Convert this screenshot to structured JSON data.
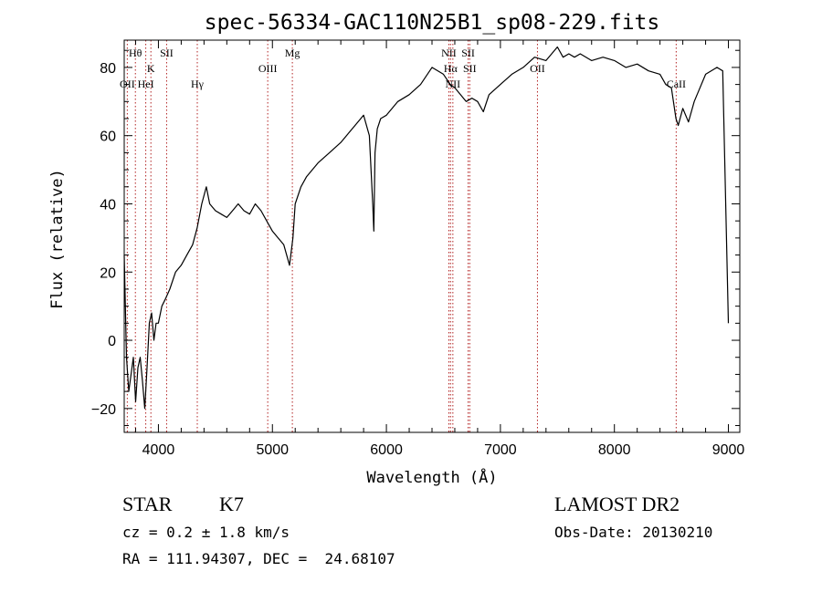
{
  "chart_data": {
    "type": "line",
    "title": "spec-56334-GAC110N25B1_sp08-229.fits",
    "xlabel": "Wavelength (Å)",
    "ylabel": "Flux (relative)",
    "xlim": [
      3700,
      9100
    ],
    "ylim": [
      -27,
      88
    ],
    "x_ticks": [
      4000,
      5000,
      6000,
      7000,
      8000,
      9000
    ],
    "y_ticks": [
      -20,
      0,
      20,
      40,
      60,
      80
    ],
    "grid": false,
    "line_color": "#000000",
    "marker_color": "#b22222",
    "series": [
      {
        "x": [
          3700,
          3720,
          3740,
          3760,
          3780,
          3800,
          3820,
          3840,
          3860,
          3880,
          3900,
          3920,
          3940,
          3960,
          3980,
          4000,
          4030,
          4060,
          4100,
          4150,
          4200,
          4250,
          4300,
          4340,
          4380,
          4420,
          4450,
          4500,
          4550,
          4600,
          4650,
          4700,
          4750,
          4800,
          4850,
          4900,
          4950,
          5000,
          5050,
          5100,
          5150,
          5180,
          5200,
          5250,
          5300,
          5400,
          5500,
          5600,
          5700,
          5800,
          5850,
          5880,
          5890,
          5900,
          5920,
          5950,
          6000,
          6100,
          6200,
          6300,
          6400,
          6500,
          6560,
          6600,
          6650,
          6700,
          6750,
          6800,
          6850,
          6900,
          7000,
          7100,
          7200,
          7300,
          7400,
          7500,
          7550,
          7600,
          7650,
          7700,
          7800,
          7900,
          8000,
          8100,
          8200,
          8300,
          8400,
          8450,
          8500,
          8540,
          8560,
          8600,
          8650,
          8700,
          8800,
          8900,
          8950,
          9000
        ],
        "y": [
          25,
          -5,
          -15,
          -10,
          -5,
          -18,
          -8,
          -5,
          -12,
          -20,
          -8,
          5,
          8,
          0,
          5,
          5,
          10,
          12,
          15,
          20,
          22,
          25,
          28,
          33,
          40,
          45,
          40,
          38,
          37,
          36,
          38,
          40,
          38,
          37,
          40,
          38,
          35,
          32,
          30,
          28,
          22,
          30,
          40,
          45,
          48,
          52,
          55,
          58,
          62,
          66,
          60,
          40,
          32,
          55,
          62,
          65,
          66,
          70,
          72,
          75,
          80,
          78,
          75,
          74,
          72,
          70,
          71,
          70,
          67,
          72,
          75,
          78,
          80,
          83,
          82,
          86,
          83,
          84,
          83,
          84,
          82,
          83,
          82,
          80,
          81,
          79,
          78,
          75,
          74,
          65,
          63,
          68,
          64,
          70,
          78,
          80,
          79,
          5
        ]
      }
    ],
    "line_markers": [
      {
        "label": "Hθ",
        "x": 3798,
        "row": 1
      },
      {
        "label": "OII",
        "x": 3727,
        "row": 3
      },
      {
        "label": "K",
        "x": 3934,
        "row": 2
      },
      {
        "label": "HeI",
        "x": 3889,
        "row": 3
      },
      {
        "label": "SII",
        "x": 4072,
        "row": 1
      },
      {
        "label": "Hγ",
        "x": 4341,
        "row": 3
      },
      {
        "label": "OIII",
        "x": 4959,
        "row": 2
      },
      {
        "label": "Mg",
        "x": 5175,
        "row": 1
      },
      {
        "label": "NII",
        "x": 6548,
        "row": 1
      },
      {
        "label": "Hα",
        "x": 6563,
        "row": 2
      },
      {
        "label": "NII",
        "x": 6583,
        "row": 3
      },
      {
        "label": "SII",
        "x": 6717,
        "row": 1
      },
      {
        "label": "SII",
        "x": 6731,
        "row": 2
      },
      {
        "label": "OII",
        "x": 7325,
        "row": 2
      },
      {
        "label": "CaII",
        "x": 8542,
        "row": 3
      }
    ]
  },
  "info": {
    "class": "STAR",
    "subclass": "K7",
    "survey": "LAMOST DR2",
    "cz": "cz = 0.2 ± 1.8 km/s",
    "obs_date": "Obs-Date: 20130210",
    "radec": "RA = 111.94307, DEC =  24.68107"
  }
}
